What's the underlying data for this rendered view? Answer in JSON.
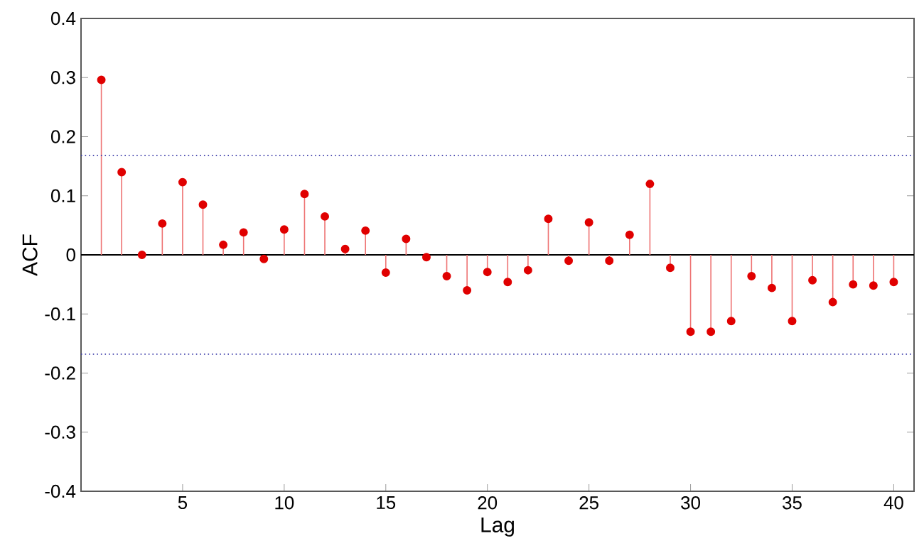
{
  "chart_data": {
    "type": "lollipop",
    "xlabel": "Lag",
    "ylabel": "ACF",
    "color": "#e00000",
    "marker": "circle",
    "x": [
      1,
      2,
      3,
      4,
      5,
      6,
      7,
      8,
      9,
      10,
      11,
      12,
      13,
      14,
      15,
      16,
      17,
      18,
      19,
      20,
      21,
      22,
      23,
      24,
      25,
      26,
      27,
      28,
      29,
      30,
      31,
      32,
      33,
      34,
      35,
      36,
      37,
      38,
      39,
      40
    ],
    "values": [
      0.296,
      0.14,
      0.0,
      0.053,
      0.123,
      0.085,
      0.017,
      0.038,
      -0.007,
      0.043,
      0.103,
      0.065,
      0.01,
      0.041,
      -0.03,
      0.027,
      -0.004,
      -0.036,
      -0.06,
      -0.029,
      -0.046,
      -0.026,
      0.061,
      -0.01,
      0.055,
      -0.01,
      0.034,
      0.12,
      -0.022,
      -0.13,
      -0.13,
      -0.112,
      -0.036,
      -0.056,
      -0.112,
      -0.043,
      -0.08,
      -0.05,
      -0.052,
      -0.046
    ],
    "xlim": [
      0,
      41
    ],
    "xticks": [
      5,
      10,
      15,
      20,
      25,
      30,
      35,
      40
    ],
    "ylim": [
      -0.4,
      0.4
    ],
    "yticks": [
      -0.4,
      -0.3,
      -0.2,
      -0.1,
      0,
      0.1,
      0.2,
      0.3,
      0.4
    ],
    "ref_lines": [
      {
        "axis": "y",
        "value": 0.168,
        "color": "#3a3aa8",
        "line_style": "dotted"
      },
      {
        "axis": "y",
        "value": -0.168,
        "color": "#3a3aa8",
        "line_style": "dotted"
      }
    ]
  }
}
